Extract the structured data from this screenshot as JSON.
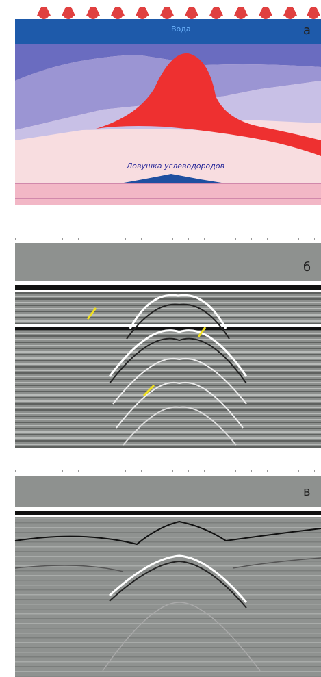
{
  "panels": [
    {
      "label": "а",
      "texts": {
        "water": "Вода",
        "trap": "Ловушка углеводородов"
      }
    },
    {
      "label": "б"
    },
    {
      "label": "в"
    }
  ]
}
